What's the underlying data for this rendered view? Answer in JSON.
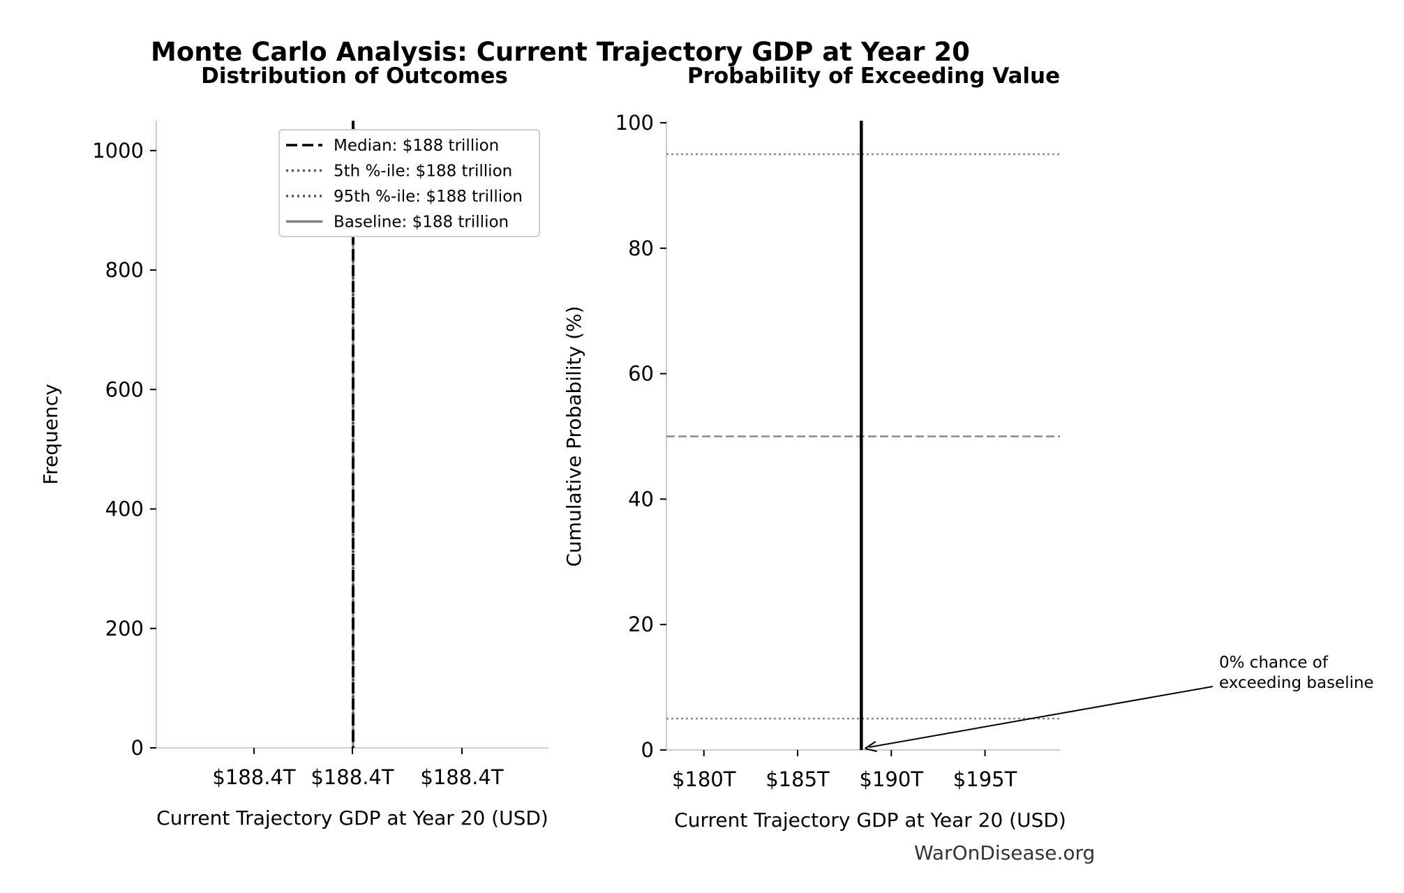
{
  "title": "Monte Carlo Analysis: Current Trajectory GDP at Year 20",
  "watermark": "WarOnDisease.org",
  "colors": {
    "axis": "#cccccc",
    "primary": "#000000",
    "dotted": "#555555",
    "baseline": "#808080",
    "ref": "#888888"
  },
  "chart_data": [
    {
      "type": "bar",
      "title": "Distribution of Outcomes",
      "xlabel": "Current Trajectory GDP at Year 20 (USD)",
      "ylabel": "Frequency",
      "ylim": [
        0,
        1050
      ],
      "yticks": [
        0,
        200,
        400,
        600,
        800,
        1000
      ],
      "xtick_labels": [
        "$188.4T",
        "$188.4T",
        "$188.4T"
      ],
      "vlines": [
        {
          "name": "Median",
          "label": "Median: $188 trillion",
          "style": "dashed",
          "color": "#000000"
        },
        {
          "name": "5th %-ile",
          "label": "5th %-ile: $188 trillion",
          "style": "dotted",
          "color": "#555555"
        },
        {
          "name": "95th %-ile",
          "label": "95th %-ile: $188 trillion",
          "style": "dotted",
          "color": "#555555"
        },
        {
          "name": "Baseline",
          "label": "Baseline: $188 trillion",
          "style": "solid",
          "color": "#808080"
        }
      ],
      "legend_position": "top-right"
    },
    {
      "type": "line",
      "title": "Probability of Exceeding Value",
      "xlabel": "Current Trajectory GDP at Year 20 (USD)",
      "ylabel": "Cumulative Probability (%)",
      "xlim": [
        178,
        199
      ],
      "ylim": [
        0,
        100
      ],
      "xticks": [
        180,
        185,
        190,
        195
      ],
      "xtick_labels": [
        "$180T",
        "$185T",
        "$190T",
        "$195T"
      ],
      "yticks": [
        0,
        20,
        40,
        60,
        80,
        100
      ],
      "step_x": 188.4,
      "hlines": [
        {
          "y": 95,
          "style": "dotted"
        },
        {
          "y": 50,
          "style": "dashed"
        },
        {
          "y": 5,
          "style": "dotted"
        }
      ],
      "annotation": {
        "lines": [
          "0% chance of",
          "exceeding baseline"
        ],
        "point": [
          188.6,
          0
        ]
      }
    }
  ]
}
